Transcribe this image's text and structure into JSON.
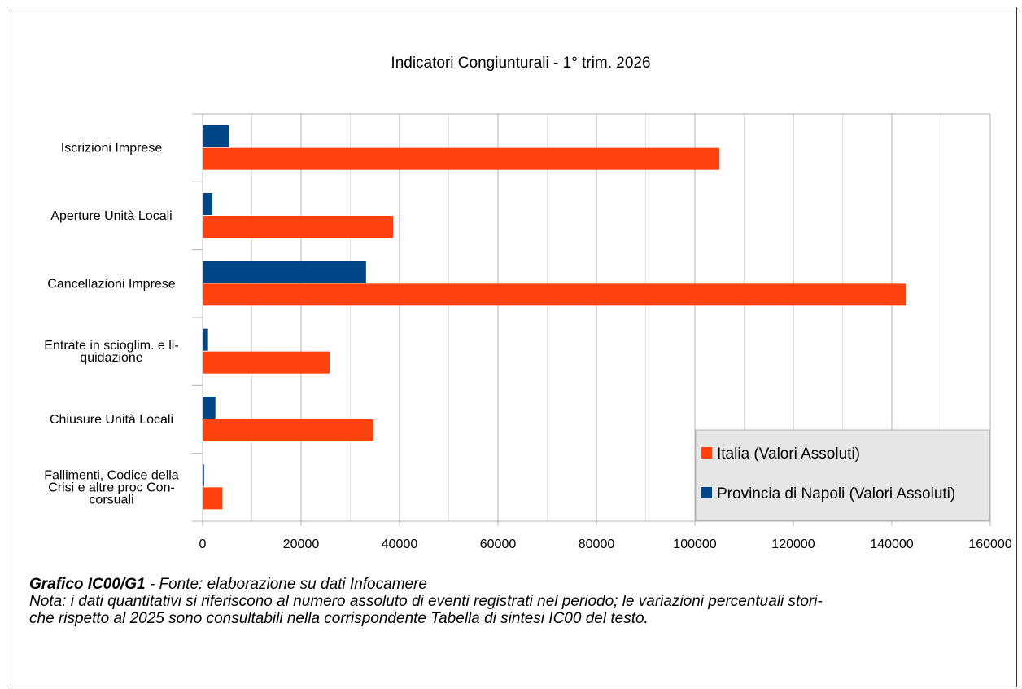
{
  "chart_data": {
    "type": "bar",
    "orientation": "horizontal",
    "title": "Indicatori Congiunturali  - 1° trim. 2026",
    "categories": [
      [
        "Iscrizioni Imprese"
      ],
      [
        "Aperture Unità Locali"
      ],
      [
        "Cancellazioni Imprese"
      ],
      [
        "Entrate in scioglim. e li-",
        "quidazione"
      ],
      [
        "Chiusure Unità Locali"
      ],
      [
        "Fallimenti, Codice della",
        "Crisi e altre proc Con-",
        "corsuali"
      ]
    ],
    "series": [
      {
        "name": "Provincia di Napoli (Valori Assoluti)",
        "color": "#004586",
        "values": [
          5400,
          2000,
          33200,
          1100,
          2600,
          300
        ]
      },
      {
        "name": "Italia (Valori Assoluti)",
        "color": "#ff420e",
        "values": [
          105000,
          38700,
          143000,
          25800,
          34700,
          4000
        ]
      }
    ],
    "xlim": [
      0,
      160000
    ],
    "xticks": [
      "0",
      "20000",
      "40000",
      "60000",
      "80000",
      "100000",
      "120000",
      "140000",
      "160000"
    ],
    "grid": true,
    "legend": {
      "placement": "bottom-right",
      "entries": [
        "Italia (Valori Assoluti)",
        "Provincia di Napoli (Valori Assoluti)"
      ]
    }
  },
  "caption": {
    "label": "Grafico IC00/G1",
    "source": " - Fonte: elaborazione su dati Infocamere",
    "note_line1": "Nota: i dati quantitativi si riferiscono al numero assoluto di eventi registrati nel periodo; le variazioni percentuali stori-",
    "note_line2": "che rispetto al 2025 sono consultabili nella corrispondente Tabella di sintesi IC00 del testo."
  },
  "colors": {
    "grid": "#b3b3b3",
    "legend_bg": "#e6e6e6"
  }
}
